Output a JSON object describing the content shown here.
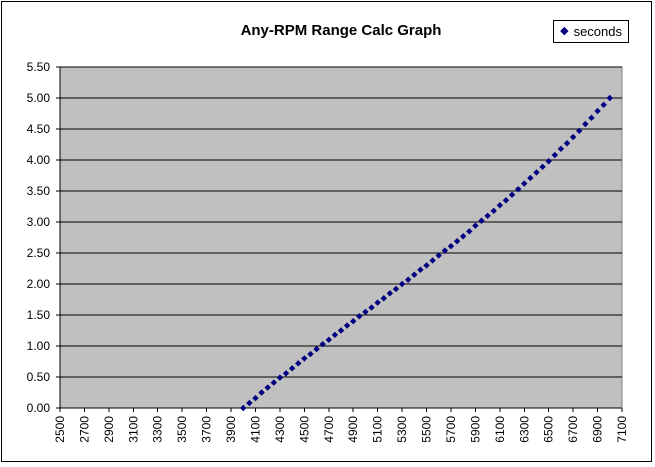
{
  "window": {
    "background": "#FFFFFF",
    "border_color": "#000000"
  },
  "chart_data": {
    "type": "scatter",
    "title": "Any-RPM Range Calc Graph",
    "xlabel": "",
    "ylabel": "",
    "plot_bg": "#C0C0C0",
    "grid": "horizontal",
    "gridline_color": "#000000",
    "axis_color": "#000000",
    "xlim": [
      2500,
      7100
    ],
    "ylim": [
      0,
      5.5
    ],
    "x_tick_step": 200,
    "y_tick_step": 0.5,
    "x_tick_labels": [
      "2500",
      "2700",
      "2900",
      "3100",
      "3300",
      "3500",
      "3700",
      "3900",
      "4100",
      "4300",
      "4500",
      "4700",
      "4900",
      "5100",
      "5300",
      "5500",
      "5700",
      "5900",
      "6100",
      "6300",
      "6500",
      "6700",
      "6900",
      "7100"
    ],
    "y_tick_labels": [
      "0.00",
      "0.50",
      "1.00",
      "1.50",
      "2.00",
      "2.50",
      "3.00",
      "3.50",
      "4.00",
      "4.50",
      "5.00",
      "5.50"
    ],
    "legend": {
      "position": "top-right",
      "entries": [
        {
          "label": "seconds",
          "marker": "diamond",
          "color": "#000080"
        }
      ]
    },
    "series": [
      {
        "name": "seconds",
        "color": "#000080",
        "marker": "diamond",
        "x": [
          4000,
          4050,
          4100,
          4150,
          4200,
          4250,
          4300,
          4350,
          4400,
          4450,
          4500,
          4550,
          4600,
          4650,
          4700,
          4750,
          4800,
          4850,
          4900,
          4950,
          5000,
          5050,
          5100,
          5150,
          5200,
          5250,
          5300,
          5350,
          5400,
          5450,
          5500,
          5550,
          5600,
          5650,
          5700,
          5750,
          5800,
          5850,
          5900,
          5950,
          6000,
          6050,
          6100,
          6150,
          6200,
          6250,
          6300,
          6350,
          6400,
          6450,
          6500,
          6550,
          6600,
          6650,
          6700,
          6750,
          6800,
          6850,
          6900,
          6950,
          7000
        ],
        "y": [
          0.0,
          0.08,
          0.16,
          0.25,
          0.33,
          0.41,
          0.49,
          0.56,
          0.64,
          0.72,
          0.8,
          0.87,
          0.95,
          1.03,
          1.1,
          1.18,
          1.25,
          1.33,
          1.4,
          1.48,
          1.55,
          1.62,
          1.7,
          1.77,
          1.85,
          1.92,
          2.0,
          2.07,
          2.15,
          2.23,
          2.3,
          2.38,
          2.46,
          2.54,
          2.61,
          2.69,
          2.77,
          2.85,
          2.94,
          3.02,
          3.1,
          3.18,
          3.27,
          3.35,
          3.44,
          3.53,
          3.62,
          3.71,
          3.8,
          3.89,
          3.98,
          4.08,
          4.18,
          4.27,
          4.37,
          4.47,
          4.58,
          4.68,
          4.79,
          4.89,
          5.0
        ]
      }
    ],
    "layout": {
      "plot_left": 60,
      "plot_right": 622,
      "plot_top": 67,
      "plot_bottom": 408,
      "tick_len": 4
    }
  }
}
